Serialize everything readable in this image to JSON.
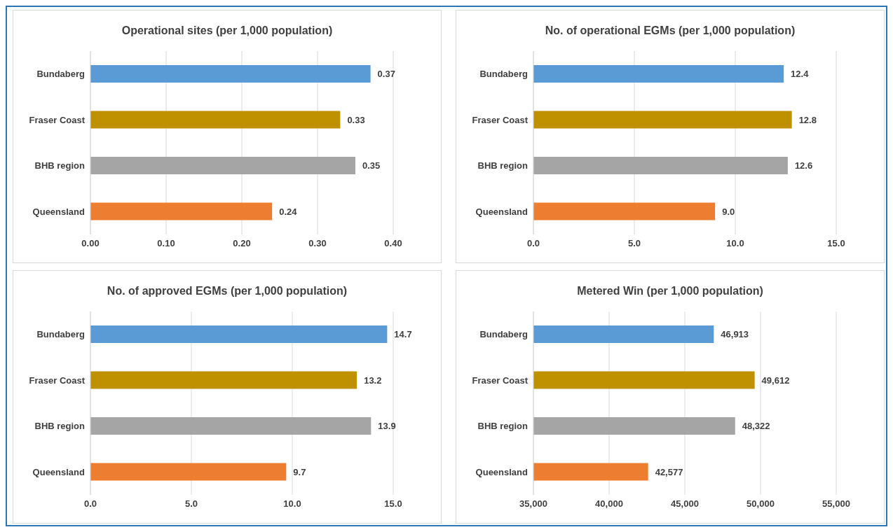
{
  "chart_data": [
    {
      "type": "bar",
      "orientation": "horizontal",
      "title": "Operational sites (per 1,000 population)",
      "categories": [
        "Bundaberg",
        "Fraser Coast",
        "BHB region",
        "Queensland"
      ],
      "values": [
        0.37,
        0.33,
        0.35,
        0.24
      ],
      "colors": [
        "#5b9bd5",
        "#bf9000",
        "#a5a5a5",
        "#ed7d31"
      ],
      "value_labels": [
        "0.37",
        "0.33",
        "0.35",
        "0.24"
      ],
      "xlim": [
        0,
        0.4
      ],
      "xticks": [
        {
          "value": 0,
          "label": "0.00"
        },
        {
          "value": 0.1,
          "label": "0.10"
        },
        {
          "value": 0.2,
          "label": "0.20"
        },
        {
          "value": 0.3,
          "label": "0.30"
        },
        {
          "value": 0.4,
          "label": "0.40"
        }
      ],
      "grid": "x"
    },
    {
      "type": "bar",
      "orientation": "horizontal",
      "title": "No. of operational EGMs (per 1,000 population)",
      "categories": [
        "Bundaberg",
        "Fraser Coast",
        "BHB region",
        "Queensland"
      ],
      "values": [
        12.4,
        12.8,
        12.6,
        9.0
      ],
      "colors": [
        "#5b9bd5",
        "#bf9000",
        "#a5a5a5",
        "#ed7d31"
      ],
      "value_labels": [
        "12.4",
        "12.8",
        "12.6",
        "9.0"
      ],
      "xlim": [
        0,
        15
      ],
      "xticks": [
        {
          "value": 0,
          "label": "0.0"
        },
        {
          "value": 5,
          "label": "5.0"
        },
        {
          "value": 10,
          "label": "10.0"
        },
        {
          "value": 15,
          "label": "15.0"
        }
      ],
      "grid": "x"
    },
    {
      "type": "bar",
      "orientation": "horizontal",
      "title": "No. of approved EGMs (per 1,000 population)",
      "categories": [
        "Bundaberg",
        "Fraser Coast",
        "BHB region",
        "Queensland"
      ],
      "values": [
        14.7,
        13.2,
        13.9,
        9.7
      ],
      "colors": [
        "#5b9bd5",
        "#bf9000",
        "#a5a5a5",
        "#ed7d31"
      ],
      "value_labels": [
        "14.7",
        "13.2",
        "13.9",
        "9.7"
      ],
      "xlim": [
        0,
        15
      ],
      "xticks": [
        {
          "value": 0,
          "label": "0.0"
        },
        {
          "value": 5,
          "label": "5.0"
        },
        {
          "value": 10,
          "label": "10.0"
        },
        {
          "value": 15,
          "label": "15.0"
        }
      ],
      "grid": "x"
    },
    {
      "type": "bar",
      "orientation": "horizontal",
      "title": "Metered Win (per 1,000 population)",
      "categories": [
        "Bundaberg",
        "Fraser Coast",
        "BHB region",
        "Queensland"
      ],
      "values": [
        46913,
        49612,
        48322,
        42577
      ],
      "colors": [
        "#5b9bd5",
        "#bf9000",
        "#a5a5a5",
        "#ed7d31"
      ],
      "value_labels": [
        "46,913",
        "49,612",
        "48,322",
        "42,577"
      ],
      "xlim": [
        35000,
        55000
      ],
      "xticks": [
        {
          "value": 35000,
          "label": "35,000"
        },
        {
          "value": 40000,
          "label": "40,000"
        },
        {
          "value": 45000,
          "label": "45,000"
        },
        {
          "value": 50000,
          "label": "50,000"
        },
        {
          "value": 55000,
          "label": "55,000"
        }
      ],
      "grid": "x"
    }
  ]
}
